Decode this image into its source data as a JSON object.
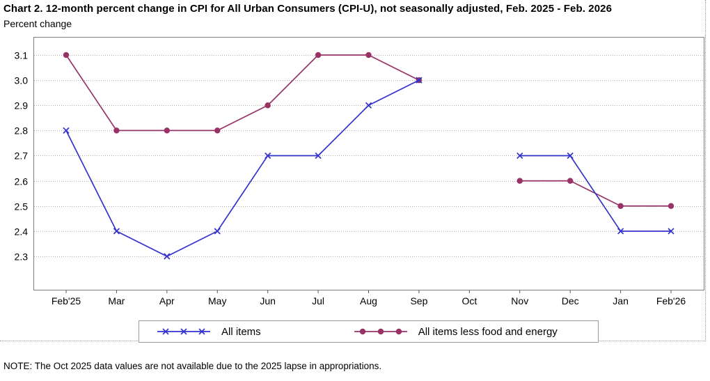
{
  "chart_data": {
    "type": "line",
    "title": "Chart 2. 12-month percent change in CPI for All Urban Consumers (CPI-U), not seasonally adjusted, Feb. 2025 - Feb. 2026",
    "ylabel": "Percent change",
    "categories": [
      "Feb'25",
      "Mar",
      "Apr",
      "May",
      "Jun",
      "Jul",
      "Aug",
      "Sep",
      "Oct",
      "Nov",
      "Dec",
      "Jan",
      "Feb'26"
    ],
    "y_tick_labels": [
      "3.1",
      "3.0",
      "2.9",
      "2.8",
      "2.7",
      "2.6",
      "2.5",
      "2.4",
      "2.3"
    ],
    "ylim": [
      2.16,
      3.17
    ],
    "grid": true,
    "legend_position": "bottom",
    "series": [
      {
        "name": "All items",
        "color": "#3333cc",
        "marker": "x",
        "values": [
          2.8,
          2.4,
          2.3,
          2.4,
          2.7,
          2.7,
          2.9,
          3.0,
          null,
          2.7,
          2.7,
          2.4,
          2.4
        ]
      },
      {
        "name": "All items less food and energy",
        "color": "#993366",
        "marker": "circle",
        "values": [
          3.1,
          2.8,
          2.8,
          2.8,
          2.9,
          3.1,
          3.1,
          3.0,
          null,
          2.6,
          2.6,
          2.5,
          2.5
        ]
      }
    ],
    "note": "NOTE: The Oct 2025 data values are not available due to the 2025 lapse in appropriations.",
    "colors": {
      "grid": "#b0b0b0",
      "plot_border": "#7f7f7f",
      "tick": "#555555",
      "text": "#000000"
    }
  }
}
